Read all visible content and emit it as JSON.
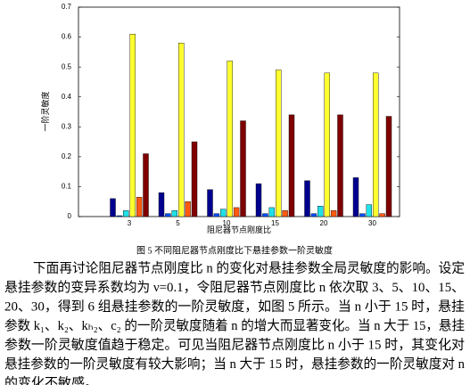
{
  "chart_data": {
    "type": "bar",
    "ylabel": "一阶灵敏度",
    "xlabel": "阻尼器节点刚度比",
    "categories": [
      "3",
      "5",
      "10",
      "15",
      "20",
      "30"
    ],
    "series": [
      {
        "color": "#00008f",
        "values": [
          0.06,
          0.08,
          0.09,
          0.11,
          0.12,
          0.13
        ]
      },
      {
        "color": "#0050ff",
        "values": [
          0.003,
          0.01,
          0.01,
          0.01,
          0.01,
          0.01
        ]
      },
      {
        "color": "#20e0e8",
        "values": [
          0.02,
          0.02,
          0.025,
          0.03,
          0.035,
          0.04
        ]
      },
      {
        "color": "#ffff30",
        "values": [
          0.61,
          0.58,
          0.52,
          0.49,
          0.48,
          0.48
        ]
      },
      {
        "color": "#ff5a10",
        "values": [
          0.065,
          0.05,
          0.03,
          0.02,
          0.02,
          0.01
        ]
      },
      {
        "color": "#800000",
        "values": [
          0.21,
          0.25,
          0.32,
          0.34,
          0.34,
          0.335
        ]
      }
    ],
    "ylim": [
      0,
      0.7
    ],
    "yticks": [
      0,
      0.1,
      0.2,
      0.3,
      0.4,
      0.5,
      0.6,
      0.7
    ]
  },
  "caption": "图 5  不同阻尼器节点刚度比下悬挂参数一阶灵敏度",
  "paragraph": [
    "下面再讨论阻尼器节点刚度比 n 的变化对悬挂参数全局灵敏度的影响。设定",
    "悬挂参数的变异系数均为 ν=0.1，令阻尼器节点刚度比 n 依次取 3、5、10、15、",
    "20、30，得到 6 组悬挂参数的一阶灵敏度，如图 5 所示。当 n 小于 15 时，悬挂",
    "参数 k₁、k₂、kₕ₂、c₂ 的一阶灵敏度随着 n 的增大而显著变化。当 n 大于 15，悬挂",
    "参数一阶灵敏度值趋于稳定。可见当阻尼器节点刚度比 n 小于 15 时，其变化对",
    "悬挂参数的一阶灵敏度有较大影响；当 n 大于 15 时，悬挂参数的一阶灵敏度对 n",
    "的变化不敏感。"
  ]
}
